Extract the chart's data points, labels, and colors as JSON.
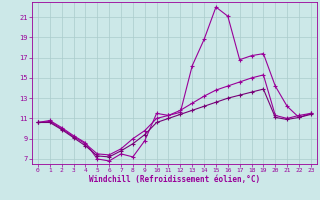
{
  "xlabel": "Windchill (Refroidissement éolien,°C)",
  "background_color": "#cce8e8",
  "grid_color": "#aacccc",
  "line_color1": "#990099",
  "line_color2": "#770077",
  "xlim": [
    -0.5,
    23.5
  ],
  "ylim": [
    6.5,
    22.5
  ],
  "yticks": [
    7,
    9,
    11,
    13,
    15,
    17,
    19,
    21
  ],
  "xticks": [
    0,
    1,
    2,
    3,
    4,
    5,
    6,
    7,
    8,
    9,
    10,
    11,
    12,
    13,
    14,
    15,
    16,
    17,
    18,
    19,
    20,
    21,
    22,
    23
  ],
  "series1_x": [
    0,
    1,
    2,
    3,
    4,
    5,
    6,
    7,
    8,
    9,
    10,
    11,
    12,
    13,
    14,
    15,
    16,
    17,
    18,
    19,
    20,
    21,
    22,
    23
  ],
  "series1_y": [
    10.6,
    10.8,
    10.1,
    9.3,
    8.6,
    7.0,
    6.8,
    7.5,
    7.2,
    8.8,
    11.5,
    11.3,
    11.6,
    16.2,
    18.8,
    22.0,
    21.1,
    16.8,
    17.2,
    17.4,
    14.2,
    12.2,
    11.1,
    11.5
  ],
  "series2_x": [
    0,
    1,
    2,
    3,
    4,
    5,
    6,
    7,
    8,
    9,
    10,
    11,
    12,
    13,
    14,
    15,
    16,
    17,
    18,
    19,
    20,
    21,
    22,
    23
  ],
  "series2_y": [
    10.6,
    10.7,
    10.0,
    9.2,
    8.5,
    7.5,
    7.4,
    8.0,
    9.0,
    9.8,
    11.0,
    11.3,
    11.8,
    12.5,
    13.2,
    13.8,
    14.2,
    14.6,
    15.0,
    15.3,
    11.3,
    11.0,
    11.3,
    11.5
  ],
  "series3_x": [
    0,
    1,
    2,
    3,
    4,
    5,
    6,
    7,
    8,
    9,
    10,
    11,
    12,
    13,
    14,
    15,
    16,
    17,
    18,
    19,
    20,
    21,
    22,
    23
  ],
  "series3_y": [
    10.6,
    10.6,
    9.9,
    9.1,
    8.3,
    7.3,
    7.2,
    7.8,
    8.5,
    9.4,
    10.6,
    11.0,
    11.4,
    11.8,
    12.2,
    12.6,
    13.0,
    13.3,
    13.6,
    13.9,
    11.1,
    10.9,
    11.1,
    11.4
  ]
}
